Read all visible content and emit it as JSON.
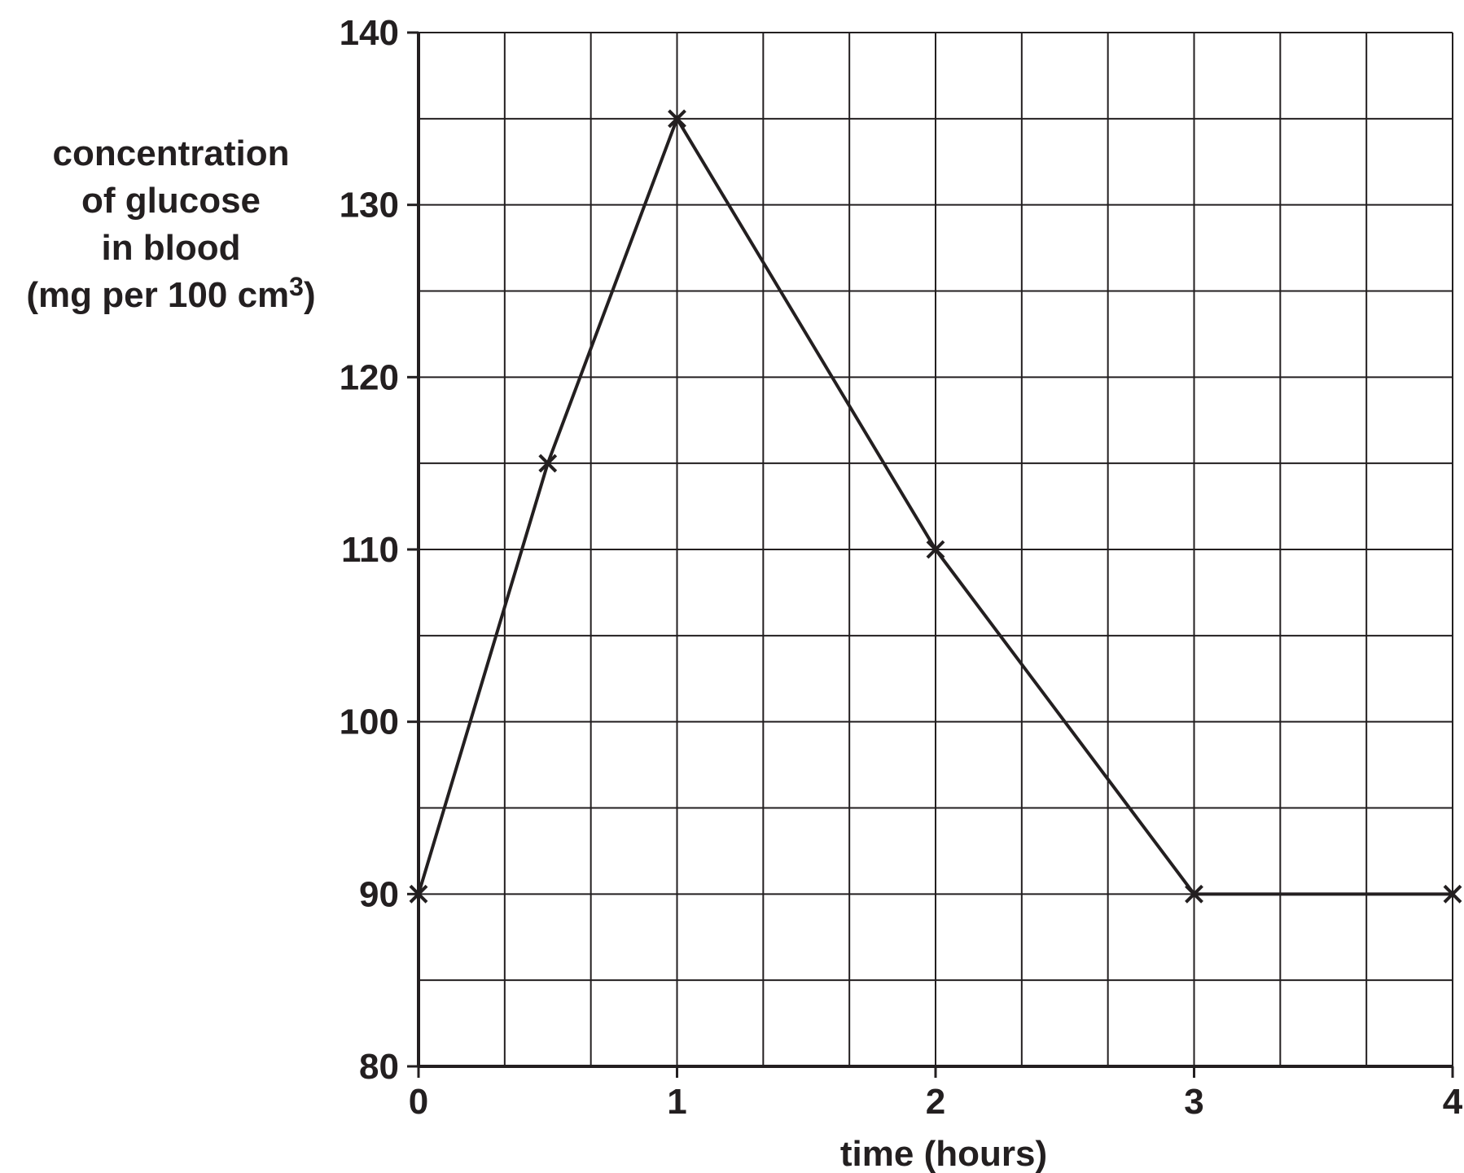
{
  "chart_data": {
    "type": "line",
    "title": "",
    "xlabel": "time (hours)",
    "ylabel_lines": [
      "concentration",
      "of glucose",
      "in blood"
    ],
    "ylabel_unit_prefix": "(mg per 100 cm",
    "ylabel_unit_sup": "3",
    "ylabel_unit_suffix": ")",
    "xlim": [
      0,
      4
    ],
    "ylim": [
      80,
      140
    ],
    "x_ticks": [
      0,
      1,
      2,
      3,
      4
    ],
    "x_tick_labels": [
      "0",
      "1",
      "2",
      "3",
      "4"
    ],
    "y_ticks": [
      80,
      90,
      100,
      110,
      120,
      130,
      140
    ],
    "y_tick_labels": [
      "80",
      "90",
      "100",
      "110",
      "120",
      "130",
      "140"
    ],
    "grid": true,
    "grid_x_step": 0.3333333333,
    "grid_y_step": 5,
    "marker": "cross",
    "series": [
      {
        "x": [
          0,
          0.5,
          1,
          2,
          3,
          4
        ],
        "y": [
          90,
          115,
          135,
          110,
          90,
          90
        ]
      }
    ],
    "colors": {
      "ink": "#231f20"
    }
  }
}
